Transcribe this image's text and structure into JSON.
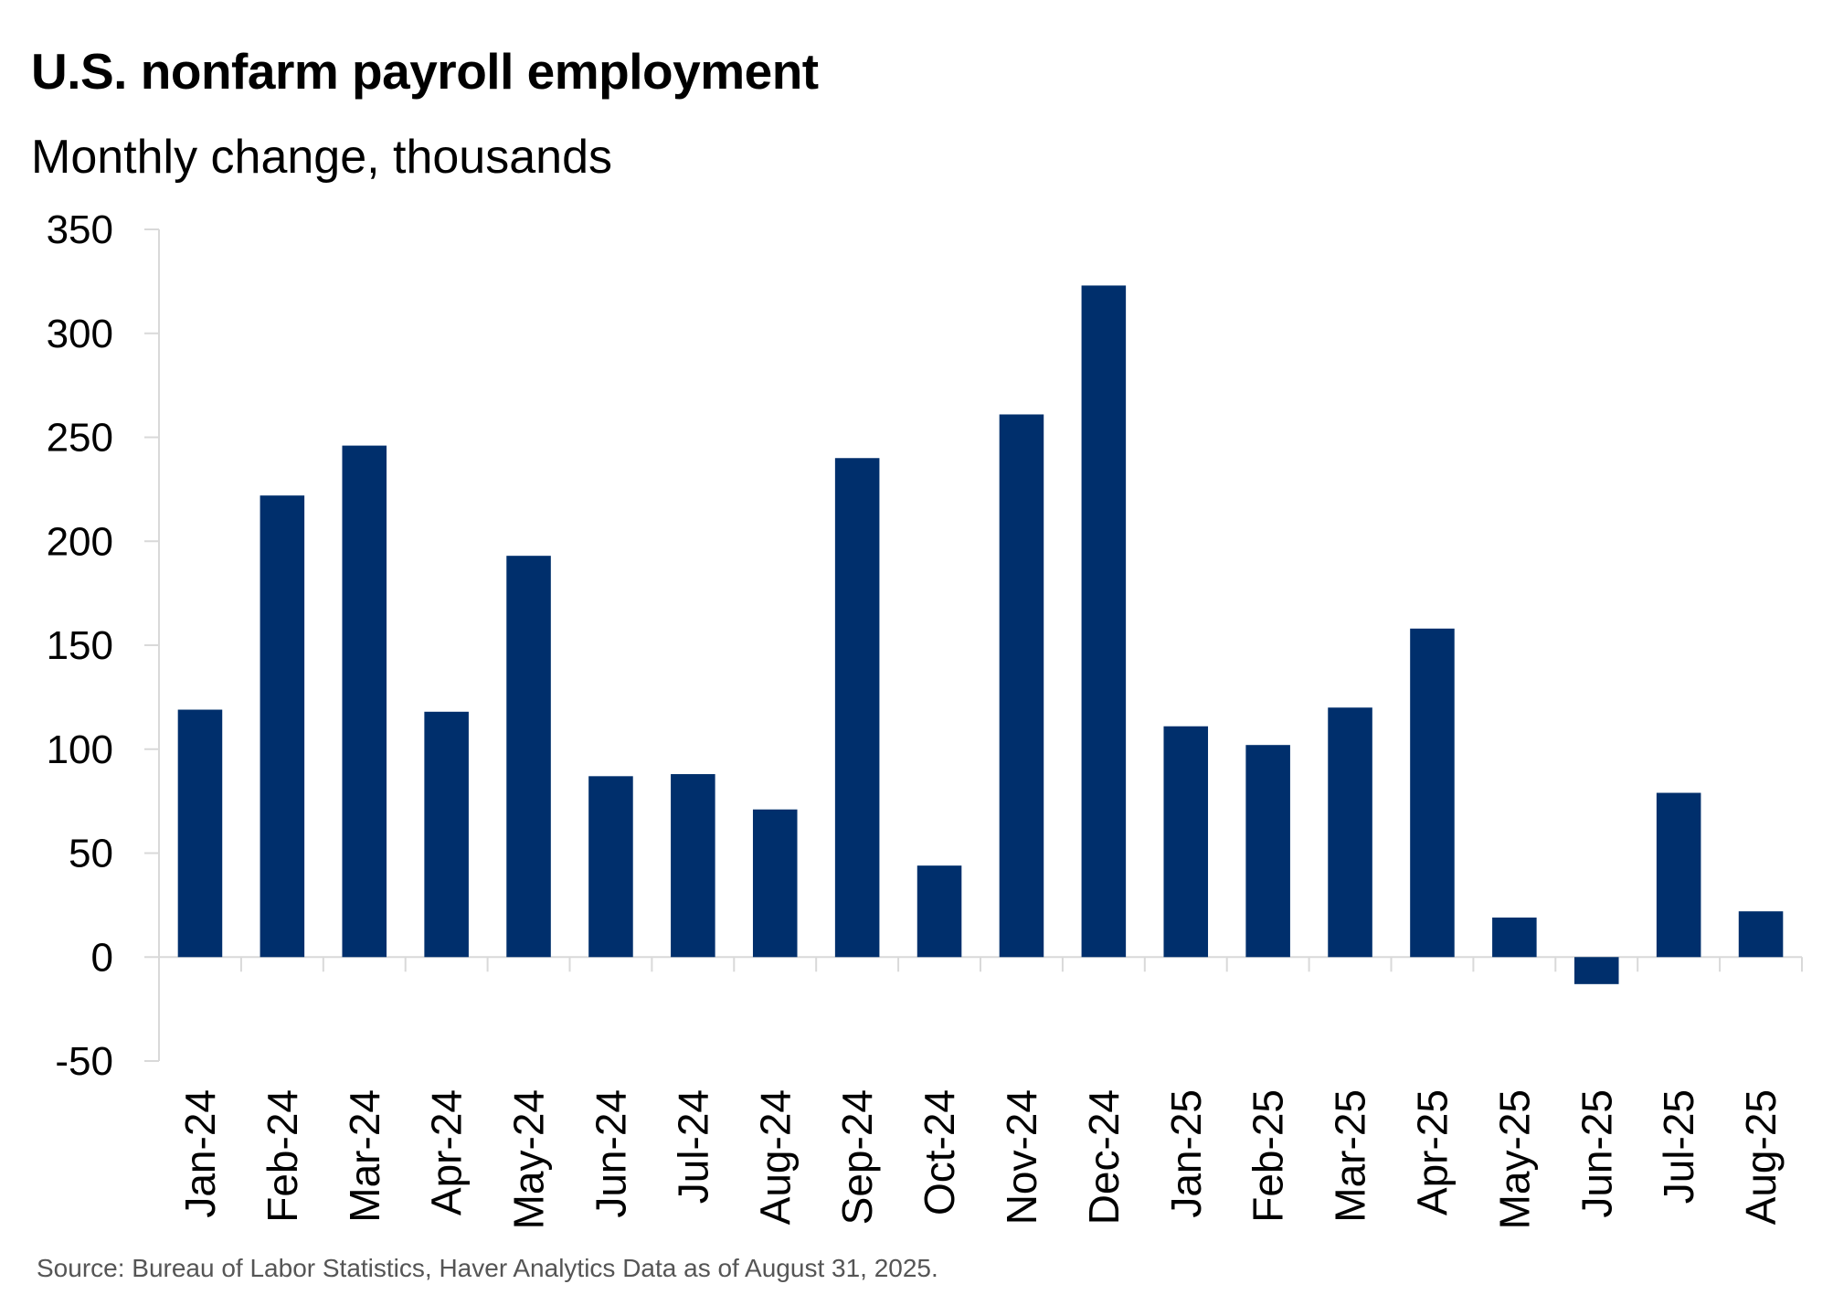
{
  "header": {
    "title": "U.S. nonfarm payroll employment",
    "subtitle": "Monthly change, thousands"
  },
  "footer": {
    "source": "Source: Bureau of Labor Statistics, Haver Analytics  Data as of August 31, 2025."
  },
  "colors": {
    "bar": "#002F6C",
    "axis": "#d9d9d9"
  },
  "chart_data": {
    "type": "bar",
    "title": "U.S. nonfarm payroll employment",
    "subtitle": "Monthly change, thousands",
    "xlabel": "",
    "ylabel": "Monthly change, thousands",
    "categories": [
      "Jan-24",
      "Feb-24",
      "Mar-24",
      "Apr-24",
      "May-24",
      "Jun-24",
      "Jul-24",
      "Aug-24",
      "Sep-24",
      "Oct-24",
      "Nov-24",
      "Dec-24",
      "Jan-25",
      "Feb-25",
      "Mar-25",
      "Apr-25",
      "May-25",
      "Jun-25",
      "Jul-25",
      "Aug-25"
    ],
    "values": [
      119,
      222,
      246,
      118,
      193,
      87,
      88,
      71,
      240,
      44,
      261,
      323,
      111,
      102,
      120,
      158,
      19,
      -13,
      79,
      22
    ],
    "ylim": [
      -50,
      350
    ],
    "yticks": [
      350,
      300,
      250,
      200,
      150,
      100,
      50,
      0,
      -50
    ],
    "grid": false,
    "legend": "none"
  }
}
